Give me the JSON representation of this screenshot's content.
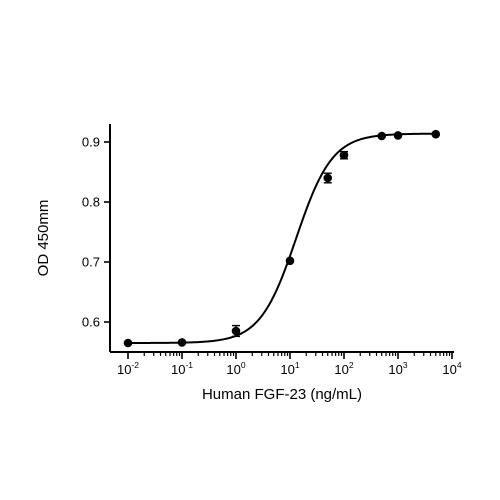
{
  "chart_data": {
    "type": "scatter",
    "title": "",
    "xlabel": "Human FGF-23 (ng/mL)",
    "ylabel": "OD 450mm",
    "x_scale": "log",
    "xlim": [
      0.01,
      10000
    ],
    "ylim": [
      0.55,
      0.93
    ],
    "x_ticks": [
      {
        "base": "10",
        "exp": "-2",
        "value": 0.01
      },
      {
        "base": "10",
        "exp": "-1",
        "value": 0.1
      },
      {
        "base": "10",
        "exp": "0",
        "value": 1
      },
      {
        "base": "10",
        "exp": "1",
        "value": 10
      },
      {
        "base": "10",
        "exp": "2",
        "value": 100
      },
      {
        "base": "10",
        "exp": "3",
        "value": 1000
      },
      {
        "base": "10",
        "exp": "4",
        "value": 10000
      }
    ],
    "y_ticks": [
      {
        "label": "0.6",
        "value": 0.6
      },
      {
        "label": "0.7",
        "value": 0.7
      },
      {
        "label": "0.8",
        "value": 0.8
      },
      {
        "label": "0.9",
        "value": 0.9
      }
    ],
    "grid": false,
    "series": [
      {
        "points": [
          {
            "x": 0.01,
            "y": 0.565,
            "err": 0
          },
          {
            "x": 0.1,
            "y": 0.566,
            "err": 0
          },
          {
            "x": 1,
            "y": 0.585,
            "err": 0.009
          },
          {
            "x": 10,
            "y": 0.702,
            "err": 0
          },
          {
            "x": 50,
            "y": 0.84,
            "err": 0.008
          },
          {
            "x": 100,
            "y": 0.878,
            "err": 0.006
          },
          {
            "x": 500,
            "y": 0.91,
            "err": 0
          },
          {
            "x": 1000,
            "y": 0.911,
            "err": 0
          },
          {
            "x": 5000,
            "y": 0.913,
            "err": 0
          }
        ],
        "fit": {
          "model": "4PL",
          "bottom": 0.565,
          "top": 0.914,
          "ec50": 13,
          "hill": 1.3
        }
      }
    ]
  }
}
